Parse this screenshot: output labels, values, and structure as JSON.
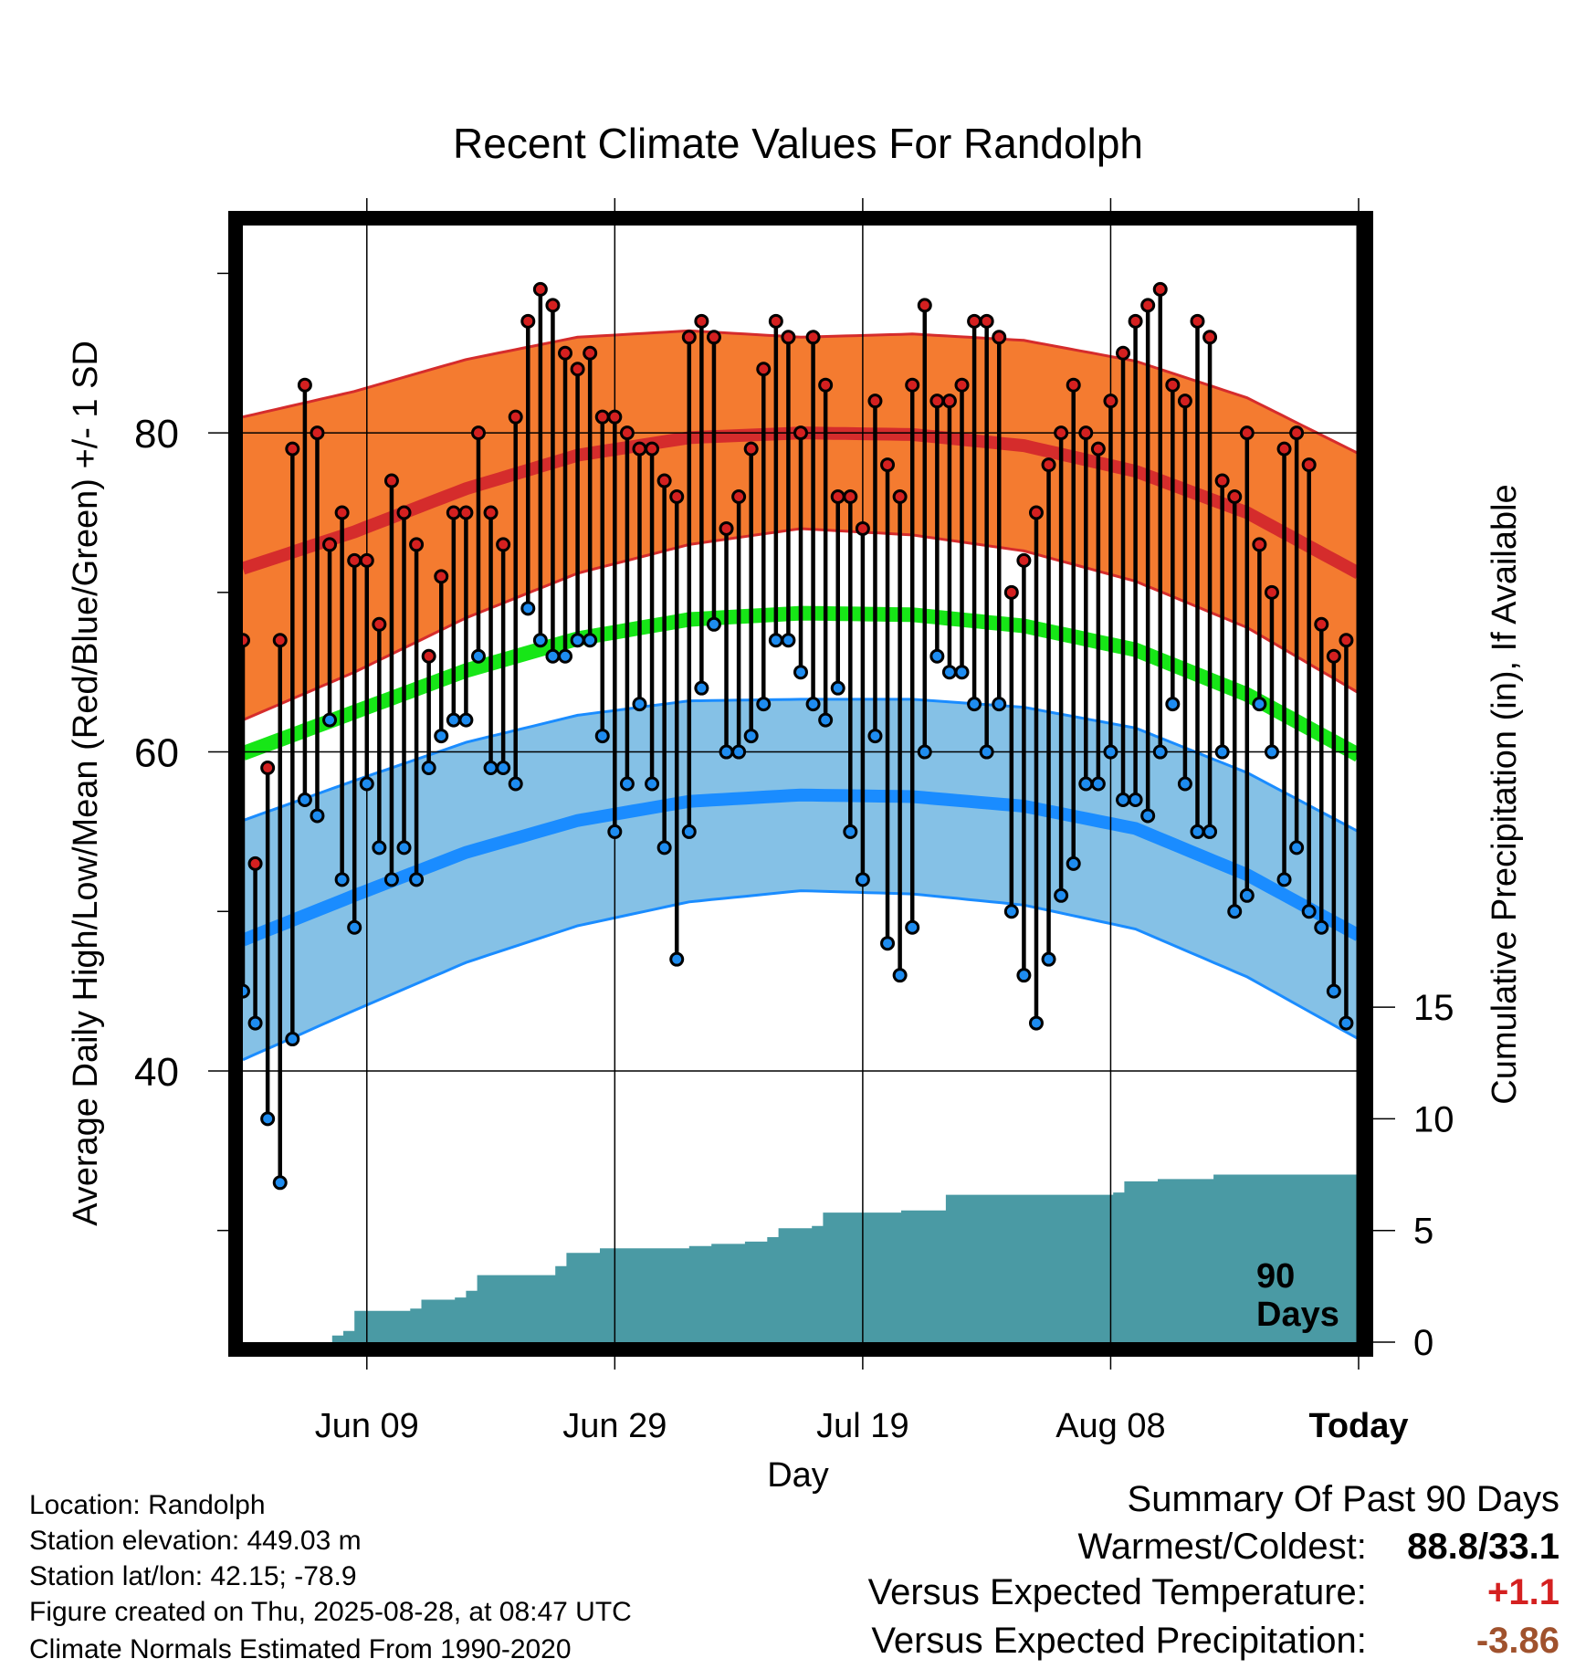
{
  "chart_data": {
    "type": "line",
    "title": "Recent Climate Values For Randolph",
    "xlabel": "Day",
    "ylabel": "Average Daily High/Low/Mean (Red/Blue/Green) +/- 1 SD",
    "y2label": "Cumulative Precipitation (in), If Available",
    "x_ticks": [
      "Jun 09",
      "Jun 29",
      "Jul 19",
      "Aug 08",
      "Today"
    ],
    "y_ticks": [
      40,
      60,
      80
    ],
    "y2_ticks": [
      0,
      5,
      10,
      15
    ],
    "ylim": [
      23,
      93
    ],
    "y2lim": [
      0,
      50
    ],
    "window_days": 90,
    "window_label": [
      "90",
      "Days"
    ],
    "days": [
      "2025-05-29",
      "2025-08-28"
    ],
    "colors": {
      "high_band": "#f47b30",
      "high_line": "#d52c2c",
      "low_band": "#85c1e6",
      "low_line": "#1a8cff",
      "mean_line": "#17e617",
      "precip": "#4a9aa4",
      "high_marker": "#d42020",
      "low_marker": "#1e8cf0"
    },
    "normal_high": [
      [
        0,
        71.5
      ],
      [
        10,
        73.8
      ],
      [
        20,
        76.5
      ],
      [
        30,
        78.6
      ],
      [
        40,
        79.7
      ],
      [
        50,
        80.0
      ],
      [
        60,
        79.9
      ],
      [
        70,
        79.2
      ],
      [
        80,
        77.6
      ],
      [
        90,
        75.0
      ],
      [
        100,
        71.2
      ]
    ],
    "normal_high_sd": [
      [
        0,
        9.5
      ],
      [
        50,
        6.0
      ],
      [
        100,
        7.5
      ]
    ],
    "normal_low": [
      [
        0,
        48.2
      ],
      [
        10,
        51.0
      ],
      [
        20,
        53.7
      ],
      [
        30,
        55.7
      ],
      [
        40,
        56.9
      ],
      [
        50,
        57.3
      ],
      [
        60,
        57.2
      ],
      [
        70,
        56.6
      ],
      [
        80,
        55.2
      ],
      [
        90,
        52.3
      ],
      [
        100,
        48.5
      ]
    ],
    "normal_low_sd": [
      [
        0,
        7.5
      ],
      [
        50,
        6.0
      ],
      [
        100,
        6.5
      ]
    ],
    "normal_mean": [
      [
        0,
        59.9
      ],
      [
        10,
        62.5
      ],
      [
        20,
        65.1
      ],
      [
        30,
        67.1
      ],
      [
        40,
        68.3
      ],
      [
        50,
        68.7
      ],
      [
        60,
        68.6
      ],
      [
        70,
        67.9
      ],
      [
        80,
        66.4
      ],
      [
        90,
        63.6
      ],
      [
        100,
        59.8
      ]
    ],
    "daily_high": [
      67,
      53,
      59,
      67,
      79,
      83,
      80,
      73,
      75,
      72,
      72,
      68,
      77,
      75,
      73,
      66,
      71,
      75,
      75,
      80,
      75,
      73,
      81,
      87,
      89,
      88,
      85,
      84,
      85,
      81,
      81,
      80,
      79,
      79,
      77,
      76,
      86,
      87,
      86,
      74,
      76,
      79,
      84,
      87,
      86,
      80,
      86,
      83,
      76,
      76,
      74,
      82,
      78,
      76,
      83,
      88,
      82,
      82,
      83,
      87,
      87,
      86,
      70,
      72,
      75,
      78,
      80,
      83,
      80,
      79,
      82,
      85,
      87,
      88,
      89,
      83,
      82,
      87,
      86,
      77,
      76,
      80,
      73,
      70,
      79,
      80,
      78,
      68,
      66,
      67
    ],
    "daily_low": [
      45,
      43,
      37,
      33,
      42,
      57,
      56,
      62,
      52,
      49,
      58,
      54,
      52,
      54,
      52,
      59,
      61,
      62,
      62,
      66,
      59,
      59,
      58,
      69,
      67,
      66,
      66,
      67,
      67,
      61,
      55,
      58,
      63,
      58,
      54,
      47,
      55,
      64,
      68,
      60,
      60,
      61,
      63,
      67,
      67,
      65,
      63,
      62,
      64,
      55,
      52,
      61,
      48,
      46,
      49,
      60,
      66,
      65,
      65,
      63,
      60,
      63,
      50,
      46,
      43,
      47,
      51,
      53,
      58,
      58,
      60,
      57,
      57,
      56,
      60,
      63,
      58,
      55,
      55,
      60,
      50,
      51,
      63,
      60,
      52,
      54,
      50,
      49,
      45,
      43
    ],
    "cumulative_precip": [
      [
        0,
        0
      ],
      [
        6,
        0
      ],
      [
        8,
        0.3
      ],
      [
        9,
        0.5
      ],
      [
        10,
        1.4
      ],
      [
        15,
        1.5
      ],
      [
        16,
        1.9
      ],
      [
        19,
        2.0
      ],
      [
        20,
        2.3
      ],
      [
        21,
        3.0
      ],
      [
        27,
        3.0
      ],
      [
        28,
        3.4
      ],
      [
        29,
        4.0
      ],
      [
        31,
        4.0
      ],
      [
        32,
        4.2
      ],
      [
        38,
        4.2
      ],
      [
        40,
        4.3
      ],
      [
        42,
        4.4
      ],
      [
        45,
        4.5
      ],
      [
        47,
        4.7
      ],
      [
        48,
        5.1
      ],
      [
        51,
        5.2
      ],
      [
        52,
        5.8
      ],
      [
        58,
        5.8
      ],
      [
        59,
        5.9
      ],
      [
        62,
        5.9
      ],
      [
        63,
        6.6
      ],
      [
        71,
        6.6
      ],
      [
        78,
        6.7
      ],
      [
        79,
        7.2
      ],
      [
        82,
        7.3
      ],
      [
        86,
        7.3
      ],
      [
        87,
        7.5
      ],
      [
        100,
        7.5
      ]
    ]
  },
  "footer": {
    "location": "Location: Randolph",
    "elevation": "Station elevation: 449.03 m",
    "latlon": "Station lat/lon: 42.15; -78.9",
    "created": "Figure created on Thu, 2025-08-28, at 08:47 UTC",
    "normals": "Climate Normals Estimated From 1990-2020"
  },
  "summary": {
    "heading": "Summary Of Past 90 Days",
    "warmest_label": "Warmest/Coldest:",
    "warmest_value": "88.8/33.1",
    "temp_label": "Versus Expected Temperature:",
    "temp_value": "+1.1",
    "temp_color": "#d42020",
    "precip_label": "Versus Expected Precipitation:",
    "precip_value": "-3.86",
    "precip_color": "#a0522d"
  }
}
